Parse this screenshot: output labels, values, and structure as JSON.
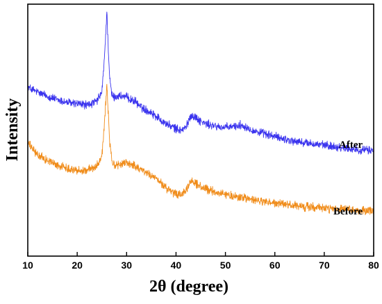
{
  "chart_data": {
    "type": "line",
    "title": "",
    "xlabel": "2θ (degree)",
    "ylabel": "Intensity",
    "xlim": [
      10,
      80
    ],
    "ylim": [
      0,
      100
    ],
    "x_ticks": [
      "10",
      "20",
      "30",
      "40",
      "50",
      "60",
      "70",
      "80"
    ],
    "y_ticks_shown": false,
    "grid": false,
    "series": [
      {
        "name": "After",
        "color": "#3a33ee",
        "x": [
          10,
          12,
          14,
          16,
          18,
          20,
          22,
          23,
          24,
          25,
          25.5,
          26,
          26.3,
          26.6,
          27,
          27.5,
          28,
          29,
          30,
          31,
          32,
          33,
          34,
          35,
          36,
          37,
          38,
          39,
          40,
          41,
          42,
          43,
          44,
          45,
          46,
          47,
          48,
          50,
          52,
          53,
          54,
          55,
          56,
          58,
          60,
          62,
          64,
          66,
          68,
          70,
          72,
          74,
          76,
          78,
          80
        ],
        "values": [
          67,
          65,
          63.5,
          62,
          61,
          60.5,
          60,
          60.5,
          61.5,
          65,
          78,
          97,
          82,
          70,
          64,
          63,
          63.5,
          63.5,
          63,
          62,
          61,
          59,
          58,
          57,
          55.5,
          54,
          52.5,
          51.5,
          50.5,
          50,
          51,
          56,
          55,
          53.5,
          52.5,
          52,
          51.5,
          51,
          51.5,
          52,
          51.5,
          50.5,
          49.5,
          48.5,
          47.5,
          46.5,
          45.5,
          45,
          44.5,
          44,
          43.5,
          43,
          42.5,
          42,
          42
        ]
      },
      {
        "name": "Before",
        "color": "#f08c1a",
        "x": [
          10,
          12,
          14,
          16,
          18,
          20,
          22,
          23,
          24,
          25,
          25.5,
          26,
          26.3,
          26.6,
          27,
          27.5,
          28,
          29,
          30,
          31,
          32,
          33,
          34,
          35,
          36,
          37,
          38,
          39,
          40,
          41,
          42,
          43,
          44,
          45,
          46,
          47,
          48,
          50,
          52,
          53,
          54,
          55,
          56,
          58,
          60,
          62,
          64,
          66,
          68,
          70,
          72,
          74,
          76,
          78,
          80
        ],
        "values": [
          45,
          40,
          38,
          36,
          35,
          34,
          34,
          35,
          36,
          40,
          52,
          68,
          56,
          45,
          38,
          36,
          36,
          36.5,
          37,
          36.5,
          35.5,
          34.5,
          33,
          32,
          30.5,
          29,
          27,
          25.5,
          24.5,
          24.5,
          25.5,
          30,
          29,
          27.5,
          26.5,
          26,
          25.5,
          24.5,
          23.5,
          23.5,
          23,
          22.5,
          22,
          21.5,
          21,
          20.5,
          20,
          19.5,
          19.5,
          19,
          18.5,
          18.5,
          18,
          18,
          18
        ]
      }
    ],
    "annotations": [
      {
        "text": "After",
        "series": "After"
      },
      {
        "text": "Before",
        "series": "Before"
      }
    ]
  }
}
